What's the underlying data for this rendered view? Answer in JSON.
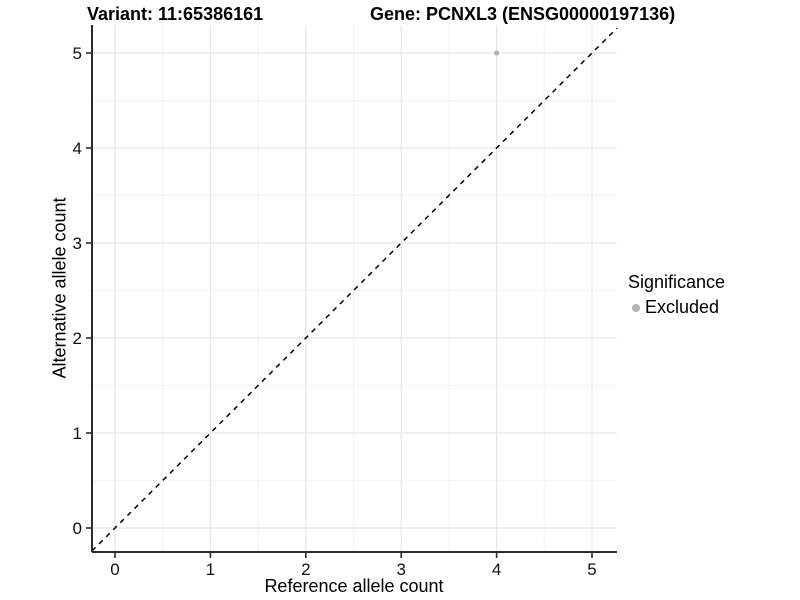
{
  "titles": {
    "variant": "Variant: 11:65386161",
    "gene": "Gene: PCNXL3 (ENSG00000197136)"
  },
  "chart_data": {
    "type": "scatter",
    "xlabel": "Reference allele count",
    "ylabel": "Alternative allele count",
    "x_ticks": [
      "0",
      "1",
      "2",
      "3",
      "4",
      "5"
    ],
    "y_ticks": [
      "0",
      "1",
      "2",
      "3",
      "4",
      "5"
    ],
    "xlim": [
      -0.25,
      5.25
    ],
    "ylim": [
      -0.25,
      5.25
    ],
    "grid": "major and minor gridlines on white background",
    "points": [
      {
        "x": 4,
        "y": 5,
        "series": "Excluded"
      }
    ],
    "reference_line": {
      "type": "identity",
      "intercept": 0,
      "slope": 1,
      "style": "dashed",
      "color": "#000000"
    },
    "legend": {
      "title": "Significance",
      "position": "right",
      "items": [
        {
          "label": "Excluded",
          "color": "#b3b3b3"
        }
      ]
    }
  },
  "colors": {
    "point": "#b3b3b3",
    "grid_major": "#e6e6e6",
    "grid_minor": "#f3f3f3",
    "axis_line": "#2b2b2b",
    "tick_label": "#111111",
    "background": "#ffffff"
  }
}
